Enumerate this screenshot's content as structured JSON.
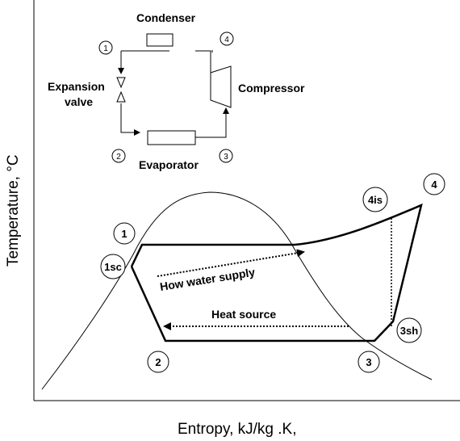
{
  "schematic": {
    "condenser": "Condenser",
    "compressor": "Compressor",
    "evaporator": "Evaporator",
    "expansion_line1": "Expansion",
    "expansion_line2": "valve",
    "state_1": "1",
    "state_2": "2",
    "state_3": "3",
    "state_4": "4"
  },
  "ts_diagram": {
    "xlabel": "Entropy, kJ/kg .K,",
    "ylabel": "Temperature, °C",
    "points": {
      "p1": "1",
      "p1sc": "1sc",
      "p2": "2",
      "p3": "3",
      "p3sh": "3sh",
      "p4": "4",
      "p4is": "4is"
    },
    "arrow_hot_water": "How water supply",
    "arrow_heat_source": "Heat source"
  }
}
